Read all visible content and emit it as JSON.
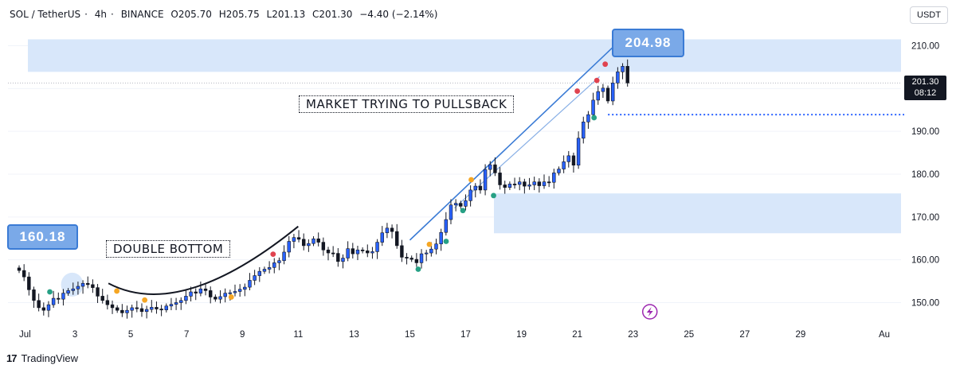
{
  "header": {
    "symbol": "SOL / TetherUS",
    "interval": "4h",
    "exchange": "BINANCE",
    "open": "O205.70",
    "high": "H205.75",
    "low": "L201.13",
    "close": "C201.30",
    "change": "−4.40 (−2.14%)"
  },
  "unit_label": "USDT",
  "last_price": {
    "value": "201.30",
    "countdown": "08:12"
  },
  "annotations": {
    "double_bottom": "DOUBLE BOTTOM",
    "pullback": "MARKET TRYING TO PULLSBACK",
    "tag_high": "204.98",
    "tag_low": "160.18"
  },
  "footer": {
    "brand": "TradingView"
  },
  "colors": {
    "up": "#2962ff",
    "down": "#131722",
    "zone": "#d6e6fa",
    "trendline": "#3a7bd5",
    "red_dot": "#e0434f",
    "green_dot": "#26a085",
    "orange_dot": "#f5a623"
  },
  "chart_data": {
    "type": "candlestick",
    "y_ticks": [
      150,
      160,
      170,
      180,
      190,
      200,
      210
    ],
    "y_tick_labels": [
      "150.00",
      "160.00",
      "170.00",
      "180.00",
      "190.00",
      "",
      "210.00"
    ],
    "ylim": [
      146,
      214
    ],
    "x_ticks": [
      {
        "label": "Jul",
        "day": 0
      },
      {
        "label": "3",
        "day": 2
      },
      {
        "label": "5",
        "day": 4
      },
      {
        "label": "7",
        "day": 6
      },
      {
        "label": "9",
        "day": 8
      },
      {
        "label": "11",
        "day": 10
      },
      {
        "label": "13",
        "day": 12
      },
      {
        "label": "15",
        "day": 14
      },
      {
        "label": "17",
        "day": 16
      },
      {
        "label": "19",
        "day": 18
      },
      {
        "label": "21",
        "day": 20
      },
      {
        "label": "23",
        "day": 22
      },
      {
        "label": "25",
        "day": 24
      },
      {
        "label": "27",
        "day": 26
      },
      {
        "label": "29",
        "day": 28
      },
      {
        "label": "Au",
        "day": 31
      }
    ],
    "xlim": [
      -0.4,
      31.6
    ],
    "closes": [
      157.5,
      156,
      153,
      150.5,
      148.8,
      148.2,
      149.5,
      151,
      150.8,
      152.2,
      152.8,
      153.2,
      153.8,
      154.5,
      154.2,
      153.5,
      151.5,
      150.5,
      149.5,
      148.8,
      148.2,
      147.6,
      148.2,
      148.8,
      148.6,
      147.9,
      148.4,
      148.9,
      148.5,
      148.3,
      149.2,
      149.6,
      150,
      150.5,
      151.5,
      152.5,
      152.2,
      153.2,
      152.8,
      151.3,
      150.8,
      151.4,
      152.2,
      152.3,
      152.6,
      153.1,
      153.6,
      155.2,
      156.3,
      157.3,
      157.8,
      158.2,
      159.3,
      159.8,
      161.8,
      164.3,
      165.2,
      164.8,
      163.3,
      163.8,
      164.9,
      164.1,
      162.3,
      161.6,
      161.5,
      159.6,
      160.4,
      162.6,
      161.4,
      162.3,
      162.1,
      161.6,
      161.9,
      164.1,
      166.3,
      167.4,
      166.6,
      163.3,
      160.6,
      160.4,
      160.1,
      159.3,
      161.4,
      161.6,
      162.5,
      163.7,
      166.4,
      169.4,
      172.8,
      173.2,
      172.5,
      173.8,
      176.3,
      177.2,
      176.3,
      181.1,
      182.2,
      180.3,
      177.5,
      176.9,
      177.7,
      177.6,
      178.2,
      177.2,
      177.5,
      178.2,
      177.3,
      178.2,
      178.1,
      180.3,
      181.2,
      182.9,
      184.3,
      182.1,
      188.4,
      192.2,
      193.9,
      197.3,
      199.3,
      200.1,
      197.1,
      201.3,
      203.9,
      205.2,
      201.3
    ],
    "events": [
      {
        "type": "green",
        "day": 1.1,
        "value": 152.5
      },
      {
        "type": "orange",
        "day": 3.5,
        "value": 152.7
      },
      {
        "type": "orange",
        "day": 4.5,
        "value": 150.6
      },
      {
        "type": "orange",
        "day": 7.6,
        "value": 151.3
      },
      {
        "type": "red",
        "day": 9.1,
        "value": 161.3
      },
      {
        "type": "green",
        "day": 14.3,
        "value": 157.8
      },
      {
        "type": "orange",
        "day": 14.7,
        "value": 163.6
      },
      {
        "type": "green",
        "day": 15.3,
        "value": 164.3
      },
      {
        "type": "green",
        "day": 15.9,
        "value": 171.5
      },
      {
        "type": "orange",
        "day": 16.2,
        "value": 178.7
      },
      {
        "type": "green",
        "day": 17.0,
        "value": 175
      },
      {
        "type": "red",
        "day": 21.0,
        "value": 205.7
      },
      {
        "type": "red",
        "day": 20.7,
        "value": 201.9
      },
      {
        "type": "red",
        "day": 20.0,
        "value": 199.4
      },
      {
        "type": "green",
        "day": 20.6,
        "value": 193.2
      }
    ]
  }
}
